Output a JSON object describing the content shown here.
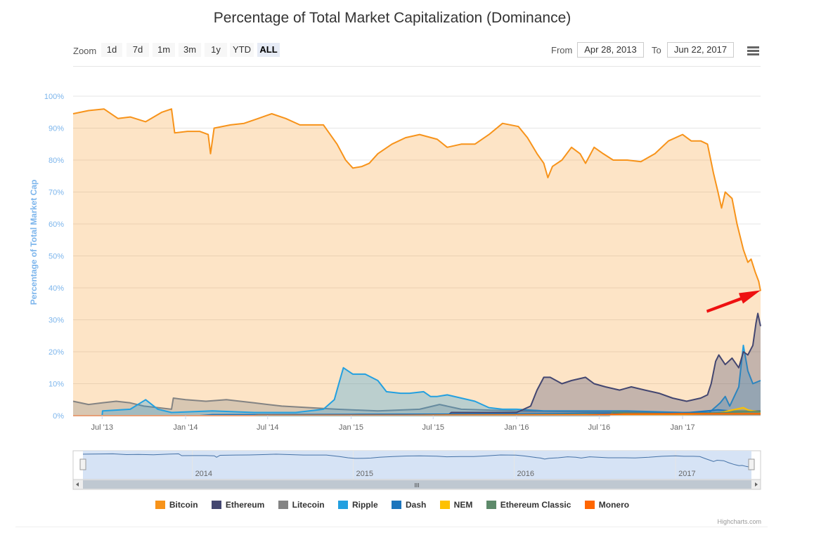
{
  "title": "Percentage of Total Market Capitalization (Dominance)",
  "range_selector": {
    "zoom_label": "Zoom",
    "buttons": [
      "1d",
      "7d",
      "1m",
      "3m",
      "1y",
      "YTD",
      "ALL"
    ],
    "active": "ALL",
    "from_label": "From",
    "from_value": "Apr 28, 2013",
    "to_label": "To",
    "to_value": "Jun 22, 2017"
  },
  "navigator": {
    "year_labels": [
      "2014",
      "2015",
      "2016",
      "2017"
    ],
    "scrollbar_grip": "III"
  },
  "credits": "Highcharts.com",
  "colors": {
    "Bitcoin": "#f7931a",
    "Ethereum": "#434670",
    "Litecoin": "#838383",
    "Ripple": "#23a0e0",
    "Dash": "#1c75bc",
    "NEM": "#fdc100",
    "Ethereum Classic": "#5d8a6a",
    "Monero": "#ff6600",
    "annotation_arrow": "#ee1111"
  },
  "chart_data": {
    "type": "area",
    "title": "Percentage of Total Market Capitalization (Dominance)",
    "ylabel": "Percentage of Total Market Cap",
    "xlabel": "",
    "ylim": [
      0,
      100
    ],
    "xlim": [
      "2013-04-28",
      "2017-06-22"
    ],
    "y_ticks": [
      "0%",
      "10%",
      "20%",
      "30%",
      "40%",
      "50%",
      "60%",
      "70%",
      "80%",
      "90%",
      "100%"
    ],
    "x_ticks": [
      {
        "label": "Jul '13",
        "date": "2013-07-01"
      },
      {
        "label": "Jan '14",
        "date": "2014-01-01"
      },
      {
        "label": "Jul '14",
        "date": "2014-07-01"
      },
      {
        "label": "Jan '15",
        "date": "2015-01-01"
      },
      {
        "label": "Jul '15",
        "date": "2015-07-01"
      },
      {
        "label": "Jan '16",
        "date": "2016-01-01"
      },
      {
        "label": "Jul '16",
        "date": "2016-07-01"
      },
      {
        "label": "Jan '17",
        "date": "2017-01-01"
      }
    ],
    "grid": true,
    "legend_position": "bottom",
    "annotation": {
      "type": "arrow",
      "points_to": {
        "x": "2017-06-22",
        "y": 39
      }
    },
    "series": [
      {
        "name": "Bitcoin",
        "points": [
          [
            "2013-04-28",
            94.5
          ],
          [
            "2013-06-01",
            95.5
          ],
          [
            "2013-07-05",
            96
          ],
          [
            "2013-08-05",
            93
          ],
          [
            "2013-09-01",
            93.5
          ],
          [
            "2013-10-05",
            92
          ],
          [
            "2013-11-10",
            95
          ],
          [
            "2013-12-01",
            96
          ],
          [
            "2013-12-08",
            88.5
          ],
          [
            "2014-01-05",
            89
          ],
          [
            "2014-02-01",
            89
          ],
          [
            "2014-02-20",
            88
          ],
          [
            "2014-02-25",
            82
          ],
          [
            "2014-03-05",
            90
          ],
          [
            "2014-04-10",
            91
          ],
          [
            "2014-05-10",
            91.5
          ],
          [
            "2014-06-10",
            93
          ],
          [
            "2014-07-10",
            94.5
          ],
          [
            "2014-08-10",
            93
          ],
          [
            "2014-09-10",
            91
          ],
          [
            "2014-10-10",
            91
          ],
          [
            "2014-11-01",
            91
          ],
          [
            "2014-12-01",
            85
          ],
          [
            "2014-12-20",
            80
          ],
          [
            "2015-01-05",
            77.5
          ],
          [
            "2015-01-25",
            78
          ],
          [
            "2015-02-10",
            79
          ],
          [
            "2015-03-01",
            82
          ],
          [
            "2015-04-01",
            85
          ],
          [
            "2015-05-01",
            87
          ],
          [
            "2015-06-01",
            88
          ],
          [
            "2015-07-10",
            86.5
          ],
          [
            "2015-08-01",
            84
          ],
          [
            "2015-09-01",
            85
          ],
          [
            "2015-10-01",
            85
          ],
          [
            "2015-11-01",
            88
          ],
          [
            "2015-12-01",
            91.5
          ],
          [
            "2016-01-05",
            90.5
          ],
          [
            "2016-01-25",
            87
          ],
          [
            "2016-02-15",
            82
          ],
          [
            "2016-03-01",
            79
          ],
          [
            "2016-03-10",
            74.5
          ],
          [
            "2016-03-20",
            78
          ],
          [
            "2016-04-10",
            80
          ],
          [
            "2016-05-01",
            84
          ],
          [
            "2016-05-20",
            82
          ],
          [
            "2016-06-01",
            79
          ],
          [
            "2016-06-20",
            84
          ],
          [
            "2016-07-10",
            82
          ],
          [
            "2016-08-01",
            80
          ],
          [
            "2016-09-01",
            80
          ],
          [
            "2016-10-01",
            79.5
          ],
          [
            "2016-11-01",
            82
          ],
          [
            "2016-12-01",
            86
          ],
          [
            "2017-01-01",
            88
          ],
          [
            "2017-01-20",
            86
          ],
          [
            "2017-02-10",
            86
          ],
          [
            "2017-02-25",
            85
          ],
          [
            "2017-03-10",
            76
          ],
          [
            "2017-03-20",
            70
          ],
          [
            "2017-03-28",
            65
          ],
          [
            "2017-04-05",
            70
          ],
          [
            "2017-04-20",
            68
          ],
          [
            "2017-05-01",
            60
          ],
          [
            "2017-05-15",
            52
          ],
          [
            "2017-05-25",
            48
          ],
          [
            "2017-06-01",
            49
          ],
          [
            "2017-06-10",
            45
          ],
          [
            "2017-06-18",
            42
          ],
          [
            "2017-06-22",
            39
          ]
        ]
      },
      {
        "name": "Litecoin",
        "points": [
          [
            "2013-04-28",
            4.5
          ],
          [
            "2013-06-01",
            3.5
          ],
          [
            "2013-07-01",
            4
          ],
          [
            "2013-08-01",
            4.5
          ],
          [
            "2013-09-01",
            4
          ],
          [
            "2013-10-01",
            3
          ],
          [
            "2013-11-01",
            2.5
          ],
          [
            "2013-12-01",
            2
          ],
          [
            "2013-12-05",
            5.5
          ],
          [
            "2014-01-01",
            5
          ],
          [
            "2014-02-15",
            4.5
          ],
          [
            "2014-04-01",
            5
          ],
          [
            "2014-06-01",
            4
          ],
          [
            "2014-08-01",
            3
          ],
          [
            "2014-10-01",
            2.5
          ],
          [
            "2014-12-01",
            2
          ],
          [
            "2015-03-01",
            1.5
          ],
          [
            "2015-06-01",
            2
          ],
          [
            "2015-07-15",
            3.5
          ],
          [
            "2015-09-01",
            2
          ],
          [
            "2016-01-01",
            1.5
          ],
          [
            "2016-06-01",
            1.2
          ],
          [
            "2017-01-01",
            1
          ],
          [
            "2017-03-15",
            0.8
          ],
          [
            "2017-05-01",
            1.5
          ],
          [
            "2017-06-22",
            1.5
          ]
        ]
      },
      {
        "name": "Ripple",
        "points": [
          [
            "2013-04-28",
            0
          ],
          [
            "2013-07-01",
            0
          ],
          [
            "2013-07-02",
            1.5
          ],
          [
            "2013-09-01",
            2
          ],
          [
            "2013-10-05",
            5
          ],
          [
            "2013-11-01",
            2
          ],
          [
            "2013-12-01",
            1
          ],
          [
            "2014-03-01",
            1.5
          ],
          [
            "2014-06-01",
            1
          ],
          [
            "2014-09-01",
            1
          ],
          [
            "2014-11-01",
            2
          ],
          [
            "2014-11-25",
            5
          ],
          [
            "2014-12-05",
            10
          ],
          [
            "2014-12-15",
            15
          ],
          [
            "2015-01-05",
            13
          ],
          [
            "2015-02-01",
            13
          ],
          [
            "2015-03-01",
            11
          ],
          [
            "2015-03-20",
            7.5
          ],
          [
            "2015-04-20",
            7
          ],
          [
            "2015-05-10",
            7
          ],
          [
            "2015-06-10",
            7.5
          ],
          [
            "2015-06-25",
            6
          ],
          [
            "2015-07-10",
            6
          ],
          [
            "2015-08-01",
            6.5
          ],
          [
            "2015-09-01",
            5.5
          ],
          [
            "2015-10-01",
            4.5
          ],
          [
            "2015-11-01",
            2.5
          ],
          [
            "2015-12-01",
            2
          ],
          [
            "2016-01-01",
            2
          ],
          [
            "2016-03-01",
            1.5
          ],
          [
            "2016-06-01",
            1.5
          ],
          [
            "2016-09-01",
            1.5
          ],
          [
            "2017-01-01",
            1
          ],
          [
            "2017-03-01",
            1
          ],
          [
            "2017-03-25",
            4
          ],
          [
            "2017-04-05",
            6
          ],
          [
            "2017-04-15",
            3
          ],
          [
            "2017-05-05",
            9
          ],
          [
            "2017-05-15",
            22
          ],
          [
            "2017-05-25",
            14
          ],
          [
            "2017-06-05",
            10
          ],
          [
            "2017-06-22",
            11
          ]
        ]
      },
      {
        "name": "Ethereum",
        "points": [
          [
            "2013-04-28",
            0
          ],
          [
            "2015-08-01",
            0
          ],
          [
            "2015-08-10",
            1
          ],
          [
            "2015-10-01",
            1
          ],
          [
            "2016-01-01",
            1
          ],
          [
            "2016-02-01",
            3
          ],
          [
            "2016-02-15",
            8
          ],
          [
            "2016-03-01",
            12
          ],
          [
            "2016-03-15",
            12
          ],
          [
            "2016-04-10",
            10
          ],
          [
            "2016-05-01",
            11
          ],
          [
            "2016-06-01",
            12
          ],
          [
            "2016-06-20",
            10
          ],
          [
            "2016-07-15",
            9
          ],
          [
            "2016-08-15",
            8
          ],
          [
            "2016-09-10",
            9
          ],
          [
            "2016-10-10",
            8
          ],
          [
            "2016-11-10",
            7
          ],
          [
            "2016-12-10",
            5.5
          ],
          [
            "2017-01-10",
            4.5
          ],
          [
            "2017-02-10",
            5.5
          ],
          [
            "2017-02-25",
            6.5
          ],
          [
            "2017-03-05",
            10
          ],
          [
            "2017-03-15",
            17
          ],
          [
            "2017-03-22",
            19
          ],
          [
            "2017-04-05",
            16
          ],
          [
            "2017-04-20",
            18
          ],
          [
            "2017-05-05",
            15
          ],
          [
            "2017-05-15",
            20
          ],
          [
            "2017-05-25",
            19
          ],
          [
            "2017-06-05",
            22
          ],
          [
            "2017-06-12",
            29
          ],
          [
            "2017-06-16",
            32
          ],
          [
            "2017-06-22",
            28
          ]
        ]
      },
      {
        "name": "Dash",
        "points": [
          [
            "2013-04-28",
            0
          ],
          [
            "2014-02-01",
            0
          ],
          [
            "2014-03-01",
            0.3
          ],
          [
            "2015-01-01",
            0.4
          ],
          [
            "2016-01-01",
            0.5
          ],
          [
            "2016-06-01",
            0.7
          ],
          [
            "2017-01-01",
            0.8
          ],
          [
            "2017-03-20",
            1.8
          ],
          [
            "2017-04-15",
            1.5
          ],
          [
            "2017-06-22",
            1.2
          ]
        ]
      },
      {
        "name": "NEM",
        "points": [
          [
            "2013-04-28",
            0
          ],
          [
            "2015-04-01",
            0
          ],
          [
            "2015-05-01",
            0.1
          ],
          [
            "2016-06-01",
            0.3
          ],
          [
            "2017-01-01",
            0.3
          ],
          [
            "2017-03-20",
            0.8
          ],
          [
            "2017-05-15",
            2.5
          ],
          [
            "2017-05-25",
            1.8
          ],
          [
            "2017-06-05",
            1.5
          ],
          [
            "2017-06-22",
            1.2
          ]
        ]
      },
      {
        "name": "Ethereum Classic",
        "points": [
          [
            "2013-04-28",
            0
          ],
          [
            "2016-07-24",
            0
          ],
          [
            "2016-08-01",
            1.2
          ],
          [
            "2016-09-01",
            0.8
          ],
          [
            "2016-12-01",
            0.6
          ],
          [
            "2017-03-01",
            0.8
          ],
          [
            "2017-05-15",
            1.2
          ],
          [
            "2017-06-22",
            1.3
          ]
        ]
      },
      {
        "name": "Monero",
        "points": [
          [
            "2013-04-28",
            0
          ],
          [
            "2014-06-01",
            0
          ],
          [
            "2014-06-10",
            0.1
          ],
          [
            "2015-06-01",
            0.1
          ],
          [
            "2016-06-01",
            0.2
          ],
          [
            "2016-09-01",
            0.5
          ],
          [
            "2017-01-01",
            0.6
          ],
          [
            "2017-06-22",
            0.6
          ]
        ]
      }
    ]
  }
}
